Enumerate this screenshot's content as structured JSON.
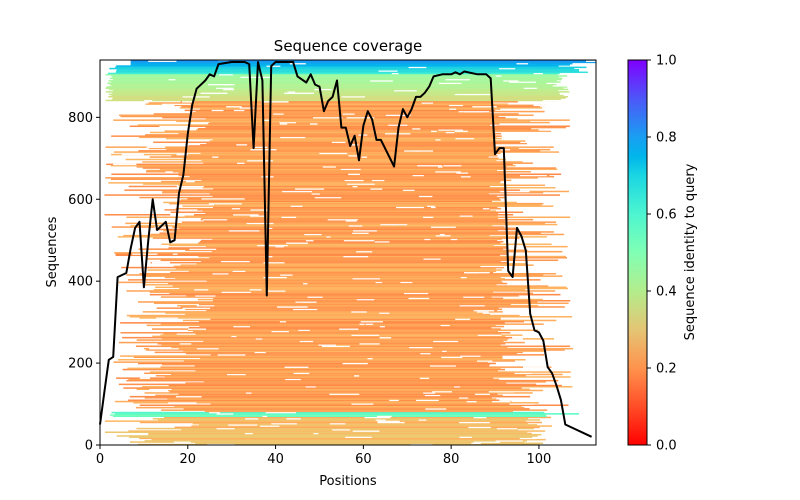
{
  "chart_data": {
    "type": "heatmap",
    "title": "Sequence coverage",
    "xlabel": "Positions",
    "ylabel": "Sequences",
    "xlim": [
      0,
      113
    ],
    "ylim": [
      0,
      940
    ],
    "xticks": [
      0,
      20,
      40,
      60,
      80,
      100
    ],
    "yticks": [
      0,
      200,
      400,
      600,
      800
    ],
    "grid": false,
    "colorbar": {
      "label": "Sequence identity to query",
      "range": [
        0.0,
        1.0
      ],
      "ticks": [
        "0.0",
        "0.2",
        "0.4",
        "0.6",
        "0.8",
        "1.0"
      ],
      "colormap": "rainbow_r",
      "placement": "right"
    },
    "coverage_line": {
      "name": "coverage",
      "color": "#000000",
      "x": [
        0,
        1,
        2,
        3,
        4,
        6,
        7,
        8,
        9,
        10,
        11,
        12,
        13,
        15,
        16,
        17,
        18,
        19,
        20,
        21,
        22,
        24,
        25,
        26,
        27,
        30,
        33,
        34,
        35,
        36,
        37,
        38,
        39,
        40,
        44,
        45,
        47,
        48,
        49,
        50,
        51,
        52,
        53,
        54,
        55,
        56,
        57,
        58,
        59,
        60,
        61,
        62,
        63,
        64,
        67,
        68,
        69,
        70,
        71,
        72,
        73,
        74,
        75,
        76,
        78,
        80,
        81,
        82,
        83,
        86,
        88,
        89,
        90,
        91,
        92,
        93,
        94,
        95,
        96,
        97,
        98,
        99,
        100,
        101,
        102,
        103,
        104,
        105,
        106,
        108,
        110,
        112
      ],
      "y": [
        50,
        130,
        208,
        215,
        410,
        420,
        480,
        530,
        545,
        385,
        500,
        600,
        525,
        545,
        495,
        500,
        615,
        660,
        760,
        830,
        870,
        890,
        905,
        900,
        930,
        935,
        935,
        930,
        725,
        935,
        890,
        365,
        925,
        935,
        935,
        900,
        885,
        905,
        880,
        875,
        815,
        840,
        850,
        890,
        775,
        775,
        730,
        755,
        695,
        780,
        815,
        795,
        745,
        745,
        680,
        775,
        820,
        800,
        820,
        850,
        850,
        860,
        875,
        900,
        905,
        905,
        910,
        905,
        912,
        905,
        905,
        895,
        710,
        725,
        725,
        425,
        410,
        530,
        510,
        475,
        320,
        280,
        275,
        255,
        190,
        175,
        145,
        110,
        50,
        40,
        30,
        20
      ]
    },
    "identity_bands": [
      {
        "rows": [
          905,
          940
        ],
        "identity": 0.75,
        "description": "high-identity top block"
      },
      {
        "rows": [
          840,
          905
        ],
        "identity": 0.42,
        "description": "green/yellow block"
      },
      {
        "rows": [
          80,
          840
        ],
        "identity": 0.22,
        "description": "orange bulk alignment"
      },
      {
        "rows": [
          68,
          80
        ],
        "identity": 0.55,
        "description": "cyan/green band near bottom"
      },
      {
        "rows": [
          0,
          68
        ],
        "identity": 0.27,
        "description": "light orange bottom block"
      }
    ]
  }
}
